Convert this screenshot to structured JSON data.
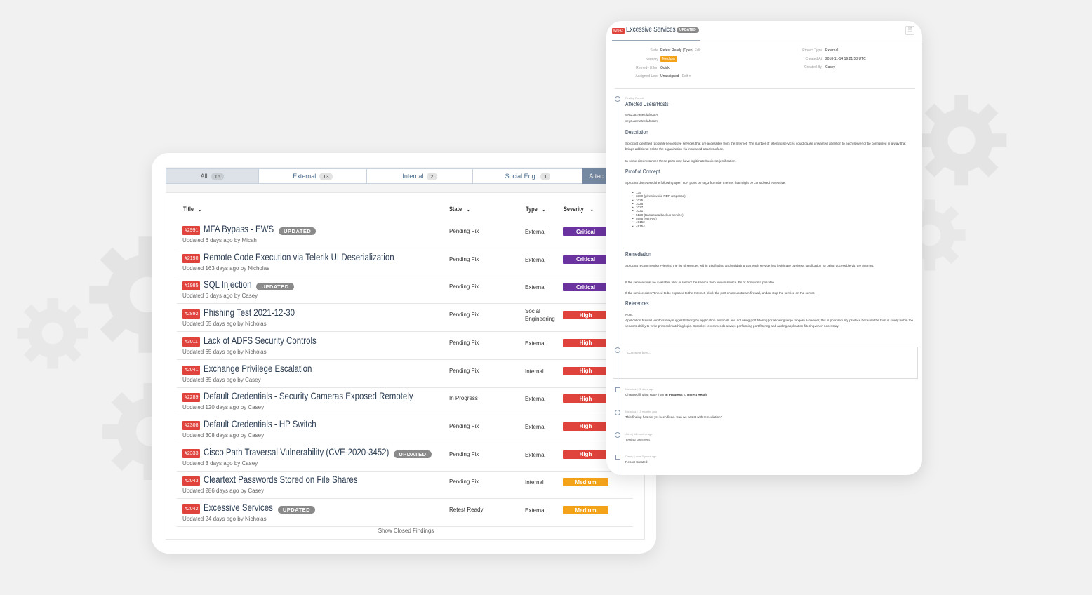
{
  "colors": {
    "critical": "#6b33a0",
    "high": "#e0433c",
    "medium": "#f5a21b",
    "id_badge": "#e0433c",
    "updated_badge": "#8a8a8a"
  },
  "tabs": [
    {
      "label": "All",
      "count": "16",
      "active": true
    },
    {
      "label": "External",
      "count": "13"
    },
    {
      "label": "Internal",
      "count": "2"
    },
    {
      "label": "Social Eng.",
      "count": "1"
    },
    {
      "label": "Attac",
      "count": ""
    }
  ],
  "columns": {
    "title": "Title",
    "state": "State",
    "type": "Type",
    "severity": "Severity",
    "chevron": "⌄"
  },
  "updated_label": "UPDATED",
  "findings": [
    {
      "id": "#2991",
      "title": "MFA Bypass - EWS",
      "updated": true,
      "sub": "Updated 6 days ago by Micah",
      "state": "Pending Fix",
      "type": "External",
      "severity": "Critical"
    },
    {
      "id": "#2190",
      "title": "Remote Code Execution via Telerik UI Deserialization",
      "updated": false,
      "sub": "Updated 163 days ago by Nicholas",
      "state": "Pending Fix",
      "type": "External",
      "severity": "Critical"
    },
    {
      "id": "#1985",
      "title": "SQL Injection",
      "updated": true,
      "sub": "Updated 6 days ago by Casey",
      "state": "Pending Fix",
      "type": "External",
      "severity": "Critical"
    },
    {
      "id": "#2892",
      "title": "Phishing Test 2021-12-30",
      "updated": false,
      "sub": "Updated 65 days ago by Nicholas",
      "state": "Pending Fix",
      "type": "Social\nEngineering",
      "severity": "High"
    },
    {
      "id": "#3011",
      "title": "Lack of ADFS Security Controls",
      "updated": false,
      "sub": "Updated 65 days ago by Nicholas",
      "state": "Pending Fix",
      "type": "External",
      "severity": "High"
    },
    {
      "id": "#2041",
      "title": "Exchange Privilege Escalation",
      "updated": false,
      "sub": "Updated 85 days ago by Casey",
      "state": "Pending Fix",
      "type": "Internal",
      "severity": "High"
    },
    {
      "id": "#2289",
      "title": "Default Credentials - Security Cameras Exposed Remotely",
      "updated": false,
      "sub": "Updated 120 days ago by Casey",
      "state": "In Progress",
      "type": "External",
      "severity": "High"
    },
    {
      "id": "#2308",
      "title": "Default Credentials - HP Switch",
      "updated": false,
      "sub": "Updated 308 days ago by Casey",
      "state": "Pending Fix",
      "type": "External",
      "severity": "High"
    },
    {
      "id": "#2333",
      "title": "Cisco Path Traversal Vulnerability (CVE-2020-3452)",
      "updated": true,
      "sub": "Updated 3 days ago by Casey",
      "state": "Pending Fix",
      "type": "External",
      "severity": "High"
    },
    {
      "id": "#2043",
      "title": "Cleartext Passwords Stored on File Shares",
      "updated": false,
      "sub": "Updated 286 days ago by Casey",
      "state": "Pending Fix",
      "type": "Internal",
      "severity": "Medium"
    },
    {
      "id": "#2042",
      "title": "Excessive Services",
      "updated": true,
      "sub": "Updated 24 days ago by Nicholas",
      "state": "Retest Ready",
      "type": "External",
      "severity": "Medium"
    }
  ],
  "show_closed": "Show Closed Findings",
  "detail": {
    "id": "#2042",
    "title": "Excessive Services",
    "updated_label": "UPDATED",
    "file_icon": "🗎",
    "meta_left": [
      {
        "label": "State",
        "value": "Retest Ready (Open)",
        "edit": "Edit"
      },
      {
        "label": "Severity",
        "value": "Medium"
      },
      {
        "label": "Remedy Effort",
        "value": "Quick"
      },
      {
        "label": "Assigned User",
        "value": "Unassigned",
        "edit": "Edit ▾"
      }
    ],
    "meta_right": [
      {
        "label": "Project Type",
        "value": "External"
      },
      {
        "label": "Created At",
        "value": "2018-11-14 19:21:58 UTC"
      },
      {
        "label": "Created By",
        "value": "Casey"
      }
    ],
    "finding_report_label": "Finding Report",
    "affected_heading": "Affected Users/Hosts",
    "hosts": [
      "seg2.acmetestlab.com",
      "seg3.acmetestlab.com"
    ],
    "description_heading": "Description",
    "description_1": "Sprocket identified (possible) excessive services that are accessible from the Internet. The number of listening services could cause unwanted attention to each server or be configured in a way that brings additional risk to the organization via increased attack surface.",
    "description_2": "In some circumstances these ports may have legitimate business justification.",
    "poc_heading": "Proof of Concept",
    "poc_intro": "Sprocket discovered the following open TCP ports on seg3 from the Internet that might be considered excessive:",
    "ports": [
      "135",
      "3389 (gives invalid RDP response)",
      "1025",
      "1026",
      "1027",
      "1031",
      "5120 (Barracuda backup service)",
      "5985 (WinRM)",
      "49152",
      "49154"
    ],
    "remediation_heading": "Remediation",
    "remediation_1": "Sprocket recommends reviewing the list of services within this finding and validating that each service has legitimate business justification for being accessible via the Internet.",
    "remediation_2": "If the service must be available, filter or restrict the service from known source IPs or domains if possible.",
    "remediation_3": "If the service doesn't need to be exposed to the Internet, block the port on an upstream firewall, and/or stop the service on the server.",
    "references_heading": "References",
    "references_note": "Note:",
    "references_text": "Application firewall vendors may suggest filtering by application protocols and not using port filtering (or allowing large ranges). However, this is poor security practice because the trust is solely within the vendors ability to write protocol matching logic. Sprocket recommends always performing port filtering and adding application filtering when necessary.",
    "comment_placeholder": "Comment here...",
    "activity": [
      {
        "meta": "Nicholas | 25 days ago",
        "pre": "Changed finding state from ",
        "from": "In Progress",
        "mid": " to ",
        "to": "Retest Ready"
      },
      {
        "meta": "Nicholas | 10 months ago",
        "text": "This finding has not yet been fixed. Can we assist with remediation?"
      },
      {
        "meta": "John | 14 months ago",
        "text": "Testing comment"
      },
      {
        "meta": "Casey | over 3 years ago",
        "text": "Report Created"
      }
    ]
  }
}
